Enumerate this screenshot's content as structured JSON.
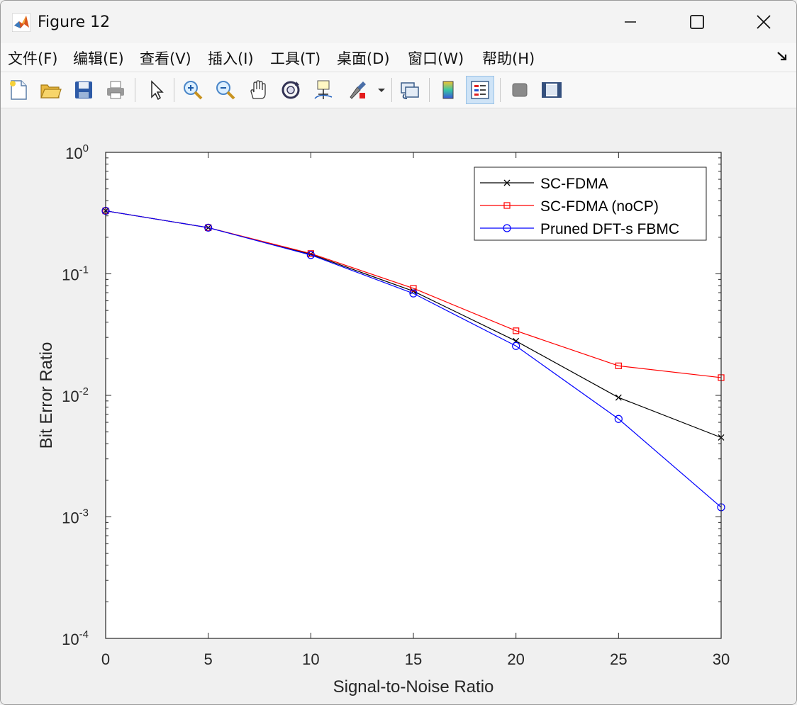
{
  "window": {
    "title": "Figure 12",
    "controls": [
      "minimize",
      "maximize",
      "close"
    ]
  },
  "menubar": {
    "items": [
      {
        "label": "文件(F)"
      },
      {
        "label": "编辑(E)"
      },
      {
        "label": "查看(V)"
      },
      {
        "label": "插入(I)"
      },
      {
        "label": "工具(T)"
      },
      {
        "label": "桌面(D)"
      },
      {
        "label": "窗口(W)"
      },
      {
        "label": "帮助(H)"
      }
    ]
  },
  "toolbar": {
    "buttons": [
      {
        "icon": "new-figure-icon"
      },
      {
        "icon": "open-file-icon"
      },
      {
        "icon": "save-icon"
      },
      {
        "icon": "print-icon"
      },
      {
        "icon": "edit-plot-arrow-icon"
      },
      {
        "icon": "zoom-in-icon"
      },
      {
        "icon": "zoom-out-icon"
      },
      {
        "icon": "pan-hand-icon"
      },
      {
        "icon": "rotate-3d-icon"
      },
      {
        "icon": "data-cursor-icon"
      },
      {
        "icon": "brush-icon"
      },
      {
        "icon": "link-plot-icon"
      },
      {
        "icon": "insert-colorbar-icon"
      },
      {
        "icon": "insert-legend-icon",
        "active": true
      },
      {
        "icon": "hide-plot-tools-icon"
      },
      {
        "icon": "show-plot-tools-icon"
      }
    ]
  },
  "chart_data": {
    "type": "line",
    "title": "",
    "xlabel": "Signal-to-Noise Ratio",
    "ylabel": "Bit Error Ratio",
    "xlim": [
      0,
      30
    ],
    "ylim": [
      0.0001,
      1
    ],
    "yscale": "log",
    "x_ticks": [
      "0",
      "5",
      "10",
      "15",
      "20",
      "25",
      "30"
    ],
    "y_ticks": [
      {
        "base": "10",
        "exp": "0"
      },
      {
        "base": "10",
        "exp": "-1"
      },
      {
        "base": "10",
        "exp": "-2"
      },
      {
        "base": "10",
        "exp": "-3"
      },
      {
        "base": "10",
        "exp": "-4"
      }
    ],
    "x": [
      0,
      5,
      10,
      15,
      20,
      25,
      30
    ],
    "series": [
      {
        "name": "SC-FDMA",
        "color": "#000000",
        "marker": "x",
        "values": [
          0.33,
          0.24,
          0.145,
          0.072,
          0.028,
          0.0096,
          0.0045
        ]
      },
      {
        "name": "SC-FDMA (noCP)",
        "color": "#ff0000",
        "marker": "square",
        "values": [
          0.33,
          0.24,
          0.147,
          0.076,
          0.034,
          0.0175,
          0.014
        ]
      },
      {
        "name": "Pruned DFT-s FBMC",
        "color": "#0000ff",
        "marker": "circle",
        "values": [
          0.33,
          0.24,
          0.143,
          0.069,
          0.0255,
          0.0064,
          0.0012
        ]
      }
    ],
    "grid": false,
    "legend_position": "top-right",
    "box": true
  }
}
